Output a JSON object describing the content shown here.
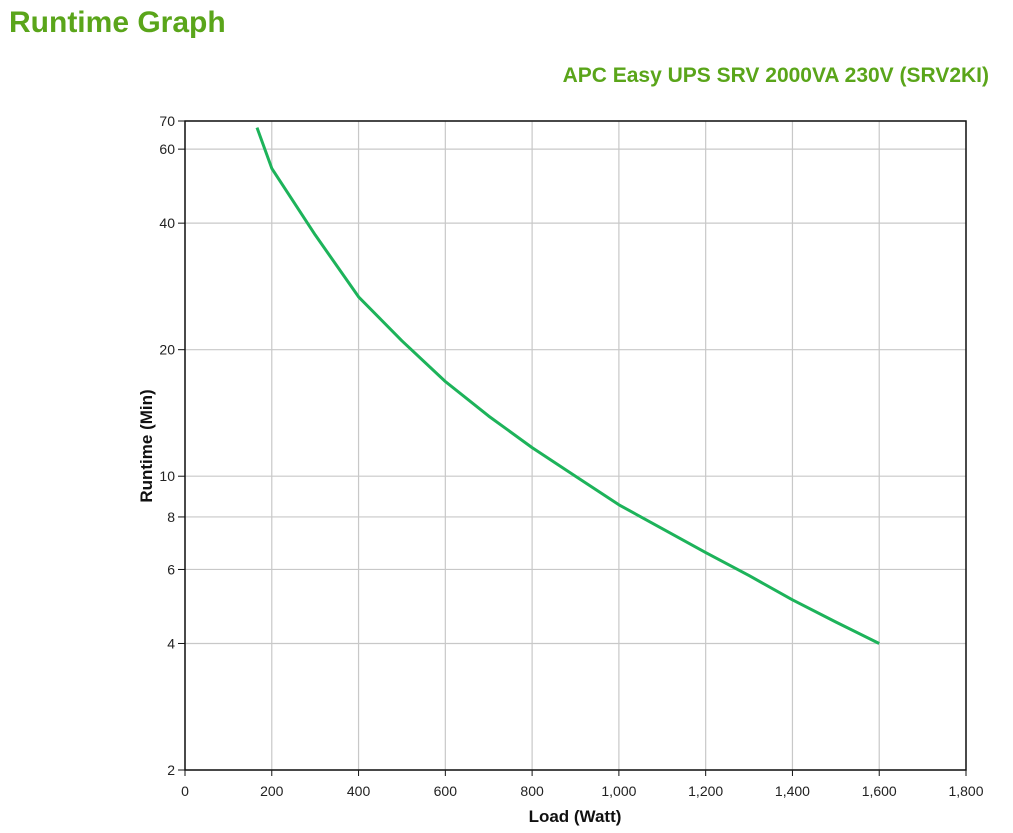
{
  "page": {
    "title": "Runtime Graph"
  },
  "chart_data": {
    "type": "line",
    "title": "APC Easy UPS SRV 2000VA 230V (SRV2KI)",
    "xlabel": "Load (Watt)",
    "ylabel": "Runtime (Min)",
    "xlim": [
      0,
      1800
    ],
    "ylim": [
      2,
      70
    ],
    "yscale": "log",
    "grid": true,
    "x_ticks": [
      0,
      200,
      400,
      600,
      800,
      1000,
      1200,
      1400,
      1600,
      1800
    ],
    "x_tick_labels": [
      "0",
      "200",
      "400",
      "600",
      "800",
      "1,000",
      "1,200",
      "1,400",
      "1,600",
      "1,800"
    ],
    "y_ticks": [
      2,
      4,
      6,
      8,
      10,
      20,
      40,
      60,
      70
    ],
    "y_tick_labels": [
      "2",
      "4",
      "6",
      "8",
      "10",
      "20",
      "40",
      "60",
      "70"
    ],
    "series": [
      {
        "color": "#1db35a",
        "x": [
          166,
          200,
          300,
          400,
          500,
          600,
          700,
          800,
          900,
          1000,
          1100,
          1200,
          1300,
          1400,
          1500,
          1600
        ],
        "y": [
          67.5,
          54,
          37.5,
          26.7,
          21,
          16.8,
          13.9,
          11.7,
          10,
          8.55,
          7.5,
          6.58,
          5.8,
          5.08,
          4.5,
          4
        ]
      }
    ]
  }
}
